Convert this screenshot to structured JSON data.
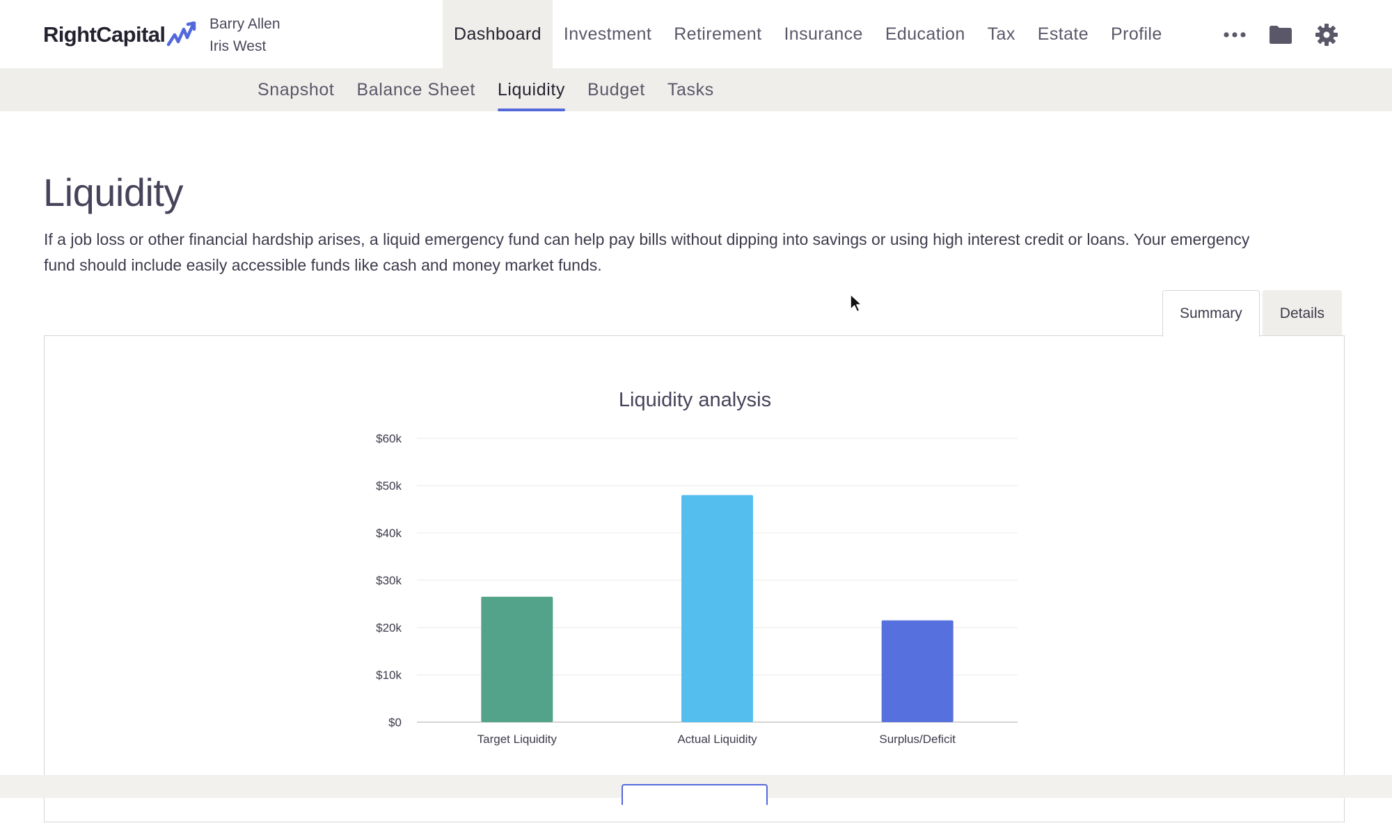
{
  "app": {
    "logo_text": "RightCapital",
    "clients": [
      "Barry Allen",
      "Iris West"
    ]
  },
  "main_nav": {
    "items": [
      {
        "label": "Dashboard",
        "active": true
      },
      {
        "label": "Investment",
        "active": false
      },
      {
        "label": "Retirement",
        "active": false
      },
      {
        "label": "Insurance",
        "active": false
      },
      {
        "label": "Education",
        "active": false
      },
      {
        "label": "Tax",
        "active": false
      },
      {
        "label": "Estate",
        "active": false
      },
      {
        "label": "Profile",
        "active": false
      }
    ],
    "icons": [
      "more-icon",
      "folder-icon",
      "gear-icon"
    ]
  },
  "sub_nav": {
    "items": [
      {
        "label": "Snapshot",
        "active": false
      },
      {
        "label": "Balance Sheet",
        "active": false
      },
      {
        "label": "Liquidity",
        "active": true
      },
      {
        "label": "Budget",
        "active": false
      },
      {
        "label": "Tasks",
        "active": false
      }
    ]
  },
  "page": {
    "title": "Liquidity",
    "description": "If a job loss or other financial hardship arises, a liquid emergency fund can help pay bills without dipping into savings or using high interest credit or loans. Your emergency fund should include easily accessible funds like cash and money market funds."
  },
  "tabs": [
    {
      "label": "Summary",
      "active": true
    },
    {
      "label": "Details",
      "active": false
    }
  ],
  "colors": {
    "accent": "#5468dc",
    "target": "#53a38a",
    "actual": "#54bfef",
    "surplus": "#5670dd"
  },
  "chart_data": {
    "type": "bar",
    "title": "Liquidity analysis",
    "categories": [
      "Target Liquidity",
      "Actual Liquidity",
      "Surplus/Deficit"
    ],
    "values": [
      26500,
      48000,
      21500
    ],
    "colors": [
      "#53a38a",
      "#54bfef",
      "#5670dd"
    ],
    "ylim": [
      0,
      60000
    ],
    "yticks": [
      "$0",
      "$10k",
      "$20k",
      "$30k",
      "$40k",
      "$50k",
      "$60k"
    ],
    "ytick_values": [
      0,
      10000,
      20000,
      30000,
      40000,
      50000,
      60000
    ],
    "grid": true,
    "xlabel": "",
    "ylabel": ""
  }
}
